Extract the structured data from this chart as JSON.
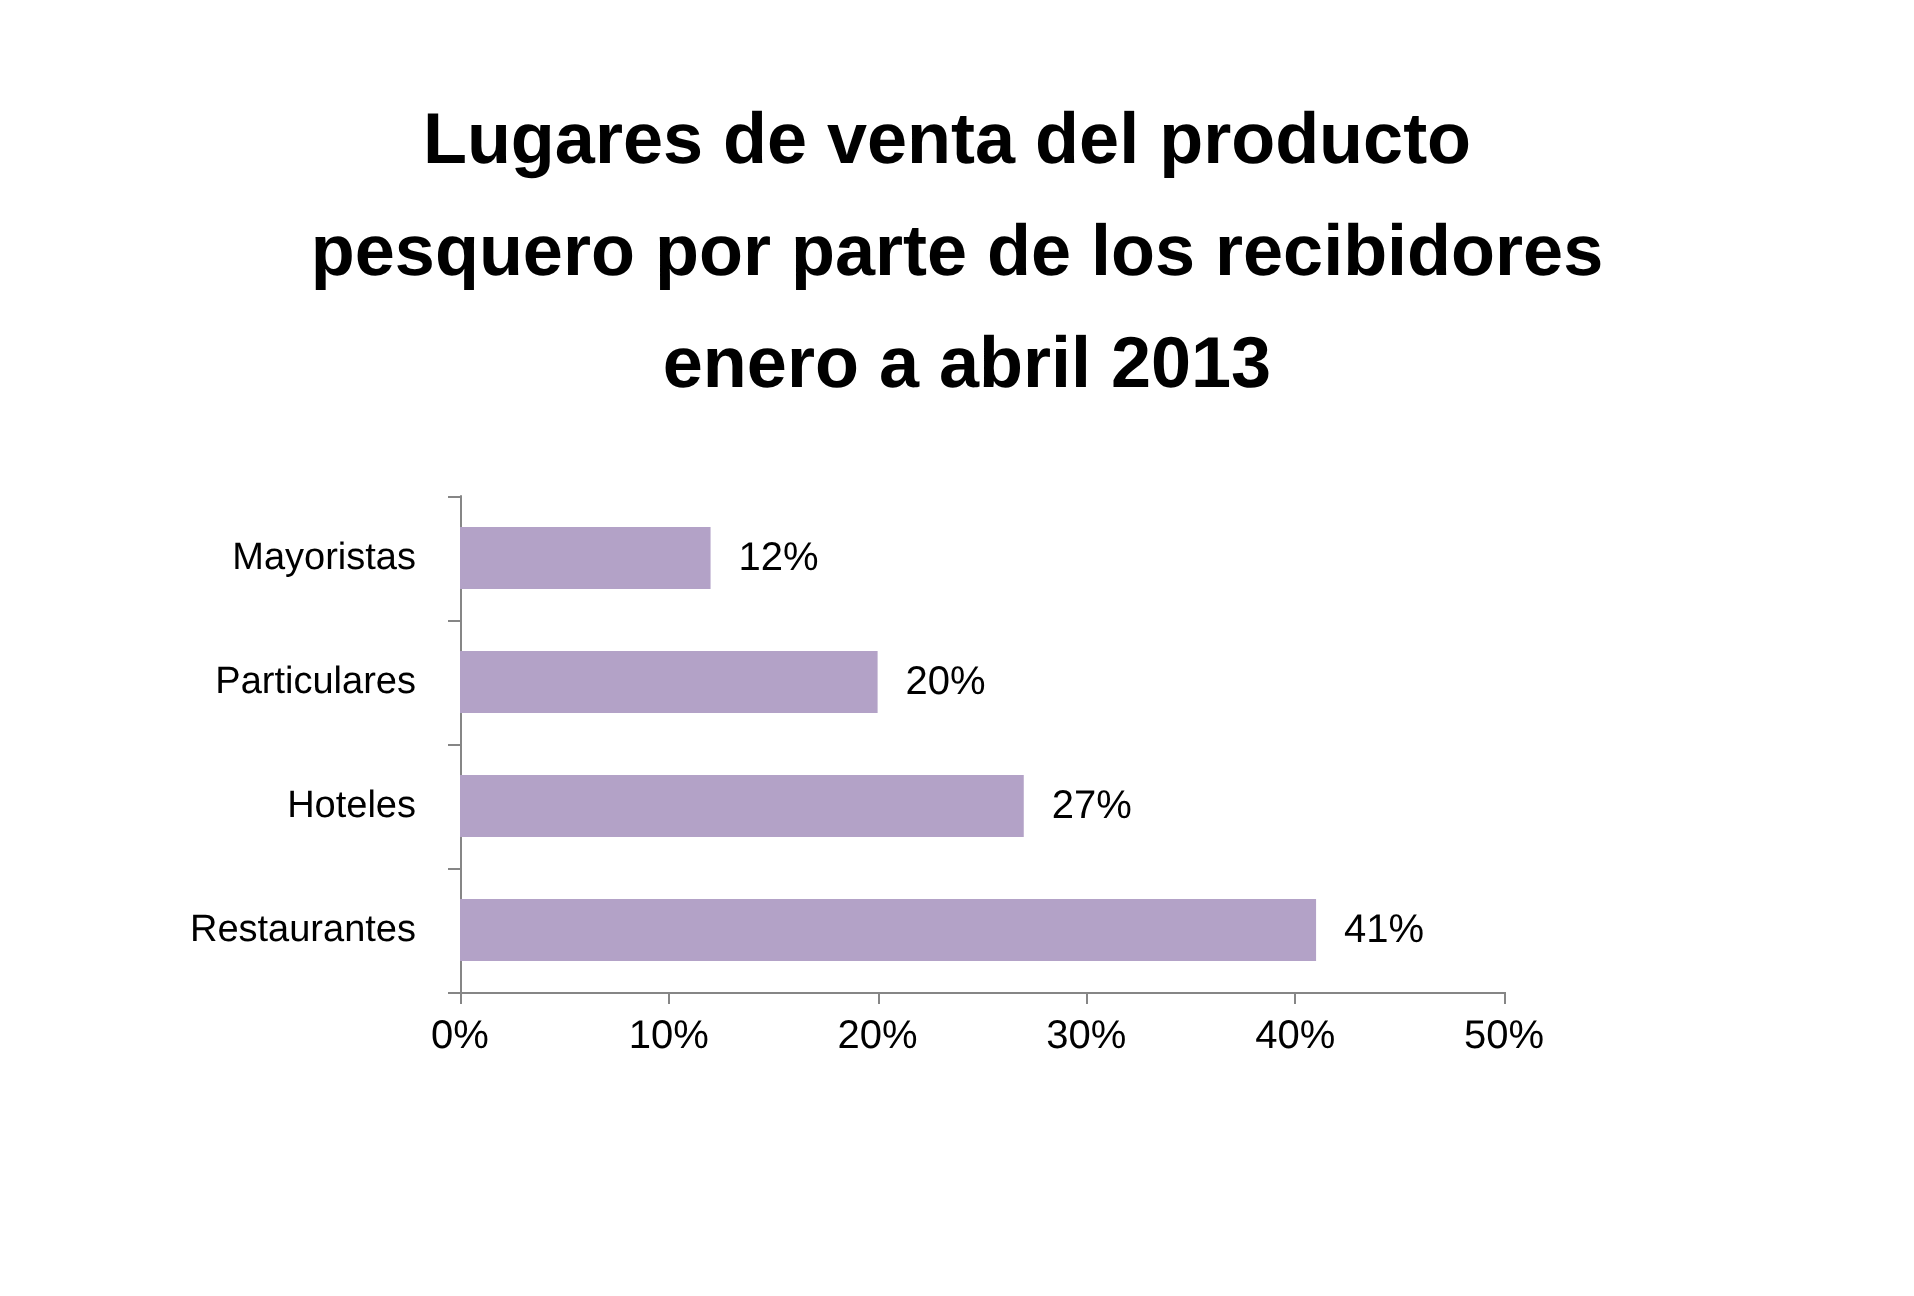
{
  "chart_data": {
    "type": "bar",
    "orientation": "horizontal",
    "title": "Lugares de venta del producto pesquero por parte de los recibidores enero a abril 2013",
    "categories": [
      "Mayoristas",
      "Particulares",
      "Hoteles",
      "Restaurantes"
    ],
    "values": [
      12,
      20,
      27,
      41
    ],
    "color": "#b3a2c7",
    "value_labels": [
      "12%",
      "20%",
      "27%",
      "41%"
    ],
    "xlim": [
      0,
      50
    ],
    "xticks": [
      {
        "value": 0,
        "label": "0%"
      },
      {
        "value": 10,
        "label": "10%"
      },
      {
        "value": 20,
        "label": "20%"
      },
      {
        "value": 30,
        "label": "30%"
      },
      {
        "value": 40,
        "label": "40%"
      },
      {
        "value": 50,
        "label": "50%"
      }
    ],
    "grid": false
  }
}
